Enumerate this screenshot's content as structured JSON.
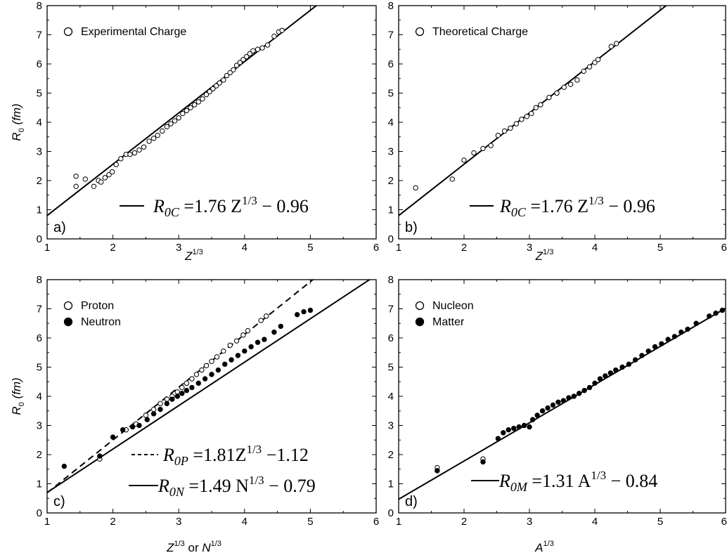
{
  "chart_data": [
    {
      "type": "scatter",
      "panel_label": "a)",
      "xlabel": "Z",
      "xlabel_sup": "1/3",
      "ylabel": "R",
      "ylabel_sub": "0",
      "ylabel_unit": "(fm)",
      "xlim": [
        1,
        6
      ],
      "ylim": [
        0,
        8
      ],
      "x_ticks": [
        "1",
        "2",
        "3",
        "4",
        "5",
        "6"
      ],
      "y_ticks": [
        "0",
        "1",
        "2",
        "3",
        "4",
        "5",
        "6",
        "7",
        "8"
      ],
      "legend": [
        {
          "name": "Experimental Charge",
          "marker": "open-circle"
        }
      ],
      "legend_position": "top-left",
      "series": [
        {
          "name": "Experimental Charge",
          "marker": "open",
          "points": [
            [
              1.44,
              2.15
            ],
            [
              1.44,
              1.8
            ],
            [
              1.58,
              2.05
            ],
            [
              1.71,
              1.8
            ],
            [
              1.78,
              2.0
            ],
            [
              1.82,
              1.95
            ],
            [
              1.88,
              2.1
            ],
            [
              1.94,
              2.2
            ],
            [
              1.99,
              2.3
            ],
            [
              2.05,
              2.55
            ],
            [
              2.12,
              2.75
            ],
            [
              2.2,
              2.9
            ],
            [
              2.26,
              2.9
            ],
            [
              2.33,
              2.95
            ],
            [
              2.4,
              3.05
            ],
            [
              2.47,
              3.15
            ],
            [
              2.55,
              3.35
            ],
            [
              2.62,
              3.45
            ],
            [
              2.68,
              3.55
            ],
            [
              2.75,
              3.7
            ],
            [
              2.82,
              3.85
            ],
            [
              2.88,
              3.95
            ],
            [
              2.94,
              4.05
            ],
            [
              3.0,
              4.15
            ],
            [
              3.06,
              4.3
            ],
            [
              3.12,
              4.4
            ],
            [
              3.18,
              4.5
            ],
            [
              3.24,
              4.6
            ],
            [
              3.3,
              4.7
            ],
            [
              3.36,
              4.8
            ],
            [
              3.42,
              4.95
            ],
            [
              3.47,
              5.05
            ],
            [
              3.52,
              5.15
            ],
            [
              3.57,
              5.25
            ],
            [
              3.62,
              5.35
            ],
            [
              3.68,
              5.45
            ],
            [
              3.73,
              5.6
            ],
            [
              3.78,
              5.7
            ],
            [
              3.83,
              5.8
            ],
            [
              3.88,
              5.95
            ],
            [
              3.93,
              6.05
            ],
            [
              3.98,
              6.15
            ],
            [
              4.03,
              6.25
            ],
            [
              4.08,
              6.35
            ],
            [
              4.13,
              6.45
            ],
            [
              4.2,
              6.5
            ],
            [
              4.27,
              6.55
            ],
            [
              4.35,
              6.65
            ],
            [
              4.45,
              6.95
            ],
            [
              4.52,
              7.1
            ],
            [
              4.57,
              7.15
            ]
          ]
        }
      ],
      "fit_lines": [
        {
          "slope": 1.76,
          "intercept": -0.96,
          "style": "solid"
        }
      ],
      "equations": [
        {
          "style": "solid",
          "symbol": "R",
          "sub": "0C",
          "text": " =1.76 ",
          "var": "Z",
          "sup": "1/3",
          "tail": " − 0.96"
        }
      ]
    },
    {
      "type": "scatter",
      "panel_label": "b)",
      "xlabel": "Z",
      "xlabel_sup": "1/3",
      "xlim": [
        1,
        6
      ],
      "ylim": [
        0,
        8
      ],
      "x_ticks": [
        "1",
        "2",
        "3",
        "4",
        "5",
        "6"
      ],
      "legend": [
        {
          "name": "Theoretical Charge",
          "marker": "open-circle"
        }
      ],
      "legend_position": "top-left",
      "series": [
        {
          "name": "Theoretical Charge",
          "marker": "open",
          "points": [
            [
              1.26,
              1.75
            ],
            [
              1.82,
              2.05
            ],
            [
              2.0,
              2.7
            ],
            [
              2.15,
              2.95
            ],
            [
              2.29,
              3.1
            ],
            [
              2.41,
              3.2
            ],
            [
              2.52,
              3.55
            ],
            [
              2.62,
              3.7
            ],
            [
              2.71,
              3.8
            ],
            [
              2.8,
              3.95
            ],
            [
              2.88,
              4.1
            ],
            [
              2.96,
              4.2
            ],
            [
              3.03,
              4.3
            ],
            [
              3.1,
              4.5
            ],
            [
              3.17,
              4.6
            ],
            [
              3.3,
              4.85
            ],
            [
              3.42,
              5.0
            ],
            [
              3.53,
              5.2
            ],
            [
              3.63,
              5.3
            ],
            [
              3.73,
              5.45
            ],
            [
              3.83,
              5.75
            ],
            [
              3.92,
              5.9
            ],
            [
              4.0,
              6.05
            ],
            [
              4.05,
              6.15
            ],
            [
              4.25,
              6.6
            ],
            [
              4.33,
              6.7
            ]
          ]
        }
      ],
      "fit_lines": [
        {
          "slope": 1.76,
          "intercept": -0.96,
          "style": "solid"
        }
      ],
      "equations": [
        {
          "style": "solid",
          "symbol": "R",
          "sub": "0C",
          "text": " =1.76 ",
          "var": "Z",
          "sup": "1/3",
          "tail": " − 0.96"
        }
      ]
    },
    {
      "type": "scatter",
      "panel_label": "c)",
      "xlabel": "Z",
      "xlabel_sup": "1/3",
      "xlabel_mid": " or ",
      "xlabel2": "N",
      "xlabel2_sup": "1/3",
      "ylabel": "R",
      "ylabel_sub": "0",
      "ylabel_unit": "(fm)",
      "xlim": [
        1,
        6
      ],
      "ylim": [
        0,
        8
      ],
      "x_ticks": [
        "1",
        "2",
        "3",
        "4",
        "5",
        "6"
      ],
      "y_ticks": [
        "0",
        "1",
        "2",
        "3",
        "4",
        "5",
        "6",
        "7",
        "8"
      ],
      "legend": [
        {
          "name": "Proton",
          "marker": "open-circle"
        },
        {
          "name": "Neutron",
          "marker": "filled-circle"
        }
      ],
      "legend_position": "top-left",
      "series": [
        {
          "name": "Proton",
          "marker": "open",
          "points": [
            [
              1.8,
              1.85
            ],
            [
              2.2,
              2.85
            ],
            [
              2.35,
              3.05
            ],
            [
              2.5,
              3.35
            ],
            [
              2.62,
              3.55
            ],
            [
              2.72,
              3.75
            ],
            [
              2.82,
              3.9
            ],
            [
              2.9,
              4.0
            ],
            [
              2.98,
              4.15
            ],
            [
              3.05,
              4.3
            ],
            [
              3.12,
              4.45
            ],
            [
              3.2,
              4.6
            ],
            [
              3.27,
              4.75
            ],
            [
              3.35,
              4.9
            ],
            [
              3.42,
              5.05
            ],
            [
              3.5,
              5.2
            ],
            [
              3.58,
              5.35
            ],
            [
              3.68,
              5.55
            ],
            [
              3.78,
              5.75
            ],
            [
              3.88,
              5.9
            ],
            [
              3.98,
              6.1
            ],
            [
              4.05,
              6.25
            ],
            [
              4.25,
              6.6
            ],
            [
              4.33,
              6.75
            ]
          ]
        },
        {
          "name": "Neutron",
          "marker": "filled",
          "points": [
            [
              1.26,
              1.6
            ],
            [
              1.8,
              1.95
            ],
            [
              2.0,
              2.6
            ],
            [
              2.15,
              2.85
            ],
            [
              2.3,
              2.95
            ],
            [
              2.4,
              3.0
            ],
            [
              2.52,
              3.2
            ],
            [
              2.62,
              3.4
            ],
            [
              2.72,
              3.55
            ],
            [
              2.82,
              3.75
            ],
            [
              2.9,
              3.9
            ],
            [
              2.98,
              4.0
            ],
            [
              3.05,
              4.1
            ],
            [
              3.12,
              4.2
            ],
            [
              3.2,
              4.3
            ],
            [
              3.3,
              4.45
            ],
            [
              3.4,
              4.6
            ],
            [
              3.5,
              4.75
            ],
            [
              3.6,
              4.9
            ],
            [
              3.7,
              5.1
            ],
            [
              3.8,
              5.25
            ],
            [
              3.9,
              5.4
            ],
            [
              4.0,
              5.55
            ],
            [
              4.1,
              5.7
            ],
            [
              4.2,
              5.85
            ],
            [
              4.3,
              5.95
            ],
            [
              4.45,
              6.2
            ],
            [
              4.55,
              6.4
            ],
            [
              4.8,
              6.8
            ],
            [
              4.9,
              6.9
            ],
            [
              5.0,
              6.95
            ]
          ]
        }
      ],
      "fit_lines": [
        {
          "slope": 1.81,
          "intercept": -1.12,
          "style": "dashed"
        },
        {
          "slope": 1.49,
          "intercept": -0.79,
          "style": "solid"
        }
      ],
      "equations": [
        {
          "style": "dashed",
          "symbol": "R",
          "sub": "0P",
          "text": " =1.81",
          "var": "Z",
          "sup": "1/3",
          "tail": " −1.12"
        },
        {
          "style": "solid",
          "symbol": "R",
          "sub": "0N",
          "text": " =1.49 ",
          "var": "N",
          "sup": "1/3",
          "tail": " − 0.79"
        }
      ]
    },
    {
      "type": "scatter",
      "panel_label": "d)",
      "xlabel": "A",
      "xlabel_sup": "1/3",
      "xlim": [
        1,
        6
      ],
      "ylim": [
        0,
        8
      ],
      "x_ticks": [
        "1",
        "2",
        "3",
        "4",
        "5",
        "6"
      ],
      "legend": [
        {
          "name": "Nucleon",
          "marker": "open-circle"
        },
        {
          "name": "Matter",
          "marker": "filled-circle"
        }
      ],
      "legend_position": "top-left",
      "series": [
        {
          "name": "Nucleon",
          "marker": "open",
          "points": [
            [
              1.59,
              1.55
            ],
            [
              2.29,
              1.85
            ]
          ]
        },
        {
          "name": "Matter",
          "marker": "filled",
          "points": [
            [
              1.59,
              1.45
            ],
            [
              2.29,
              1.75
            ],
            [
              2.52,
              2.55
            ],
            [
              2.6,
              2.75
            ],
            [
              2.68,
              2.85
            ],
            [
              2.76,
              2.9
            ],
            [
              2.84,
              2.95
            ],
            [
              2.92,
              3.0
            ],
            [
              3.0,
              2.95
            ],
            [
              3.05,
              3.2
            ],
            [
              3.12,
              3.35
            ],
            [
              3.2,
              3.5
            ],
            [
              3.28,
              3.6
            ],
            [
              3.36,
              3.7
            ],
            [
              3.44,
              3.8
            ],
            [
              3.52,
              3.85
            ],
            [
              3.6,
              3.95
            ],
            [
              3.68,
              4.0
            ],
            [
              3.76,
              4.1
            ],
            [
              3.84,
              4.2
            ],
            [
              3.92,
              4.3
            ],
            [
              4.0,
              4.45
            ],
            [
              4.08,
              4.6
            ],
            [
              4.16,
              4.7
            ],
            [
              4.24,
              4.8
            ],
            [
              4.32,
              4.9
            ],
            [
              4.42,
              5.0
            ],
            [
              4.52,
              5.1
            ],
            [
              4.62,
              5.25
            ],
            [
              4.72,
              5.4
            ],
            [
              4.82,
              5.55
            ],
            [
              4.92,
              5.7
            ],
            [
              5.02,
              5.8
            ],
            [
              5.12,
              5.95
            ],
            [
              5.22,
              6.05
            ],
            [
              5.32,
              6.2
            ],
            [
              5.42,
              6.3
            ],
            [
              5.55,
              6.5
            ],
            [
              5.75,
              6.75
            ],
            [
              5.85,
              6.85
            ],
            [
              5.95,
              6.95
            ]
          ]
        }
      ],
      "fit_lines": [
        {
          "slope": 1.31,
          "intercept": -0.84,
          "style": "solid"
        }
      ],
      "equations": [
        {
          "style": "solid",
          "symbol": "R",
          "sub": "0M",
          "text": " =1.31 ",
          "var": "A",
          "sup": "1/3",
          "tail": " − 0.84"
        }
      ]
    }
  ]
}
